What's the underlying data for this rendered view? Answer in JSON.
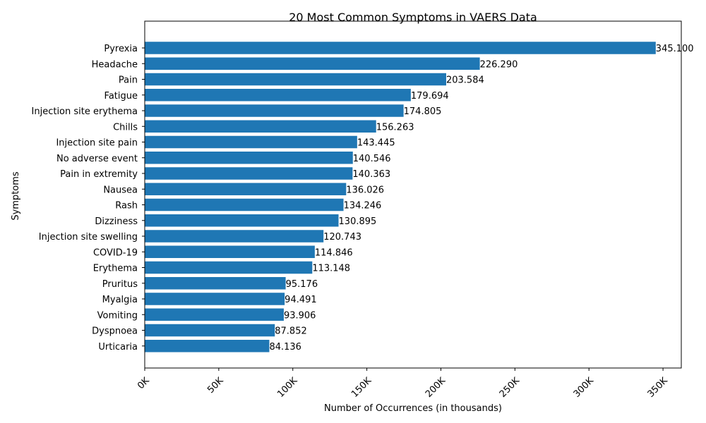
{
  "chart_data": {
    "type": "bar",
    "orientation": "horizontal",
    "title": "20 Most Common Symptoms in VAERS Data",
    "xlabel": "Number of Occurrences (in thousands)",
    "ylabel": "Symptoms",
    "xlim": [
      0,
      362355
    ],
    "x_ticks": [
      0,
      50000,
      100000,
      150000,
      200000,
      250000,
      300000,
      350000
    ],
    "x_tick_labels": [
      "0K",
      "50K",
      "100K",
      "150K",
      "200K",
      "250K",
      "300K",
      "350K"
    ],
    "bar_color": "#1f77b4",
    "grid": false,
    "categories": [
      "Pyrexia",
      "Headache",
      "Pain",
      "Fatigue",
      "Injection site erythema",
      "Chills",
      "Injection site pain",
      "No adverse event",
      "Pain in extremity",
      "Nausea",
      "Rash",
      "Dizziness",
      "Injection site swelling",
      "COVID-19",
      "Erythema",
      "Pruritus",
      "Myalgia",
      "Vomiting",
      "Dyspnoea",
      "Urticaria"
    ],
    "values": [
      345100,
      226290,
      203584,
      179694,
      174805,
      156263,
      143445,
      140546,
      140363,
      136026,
      134246,
      130895,
      120743,
      114846,
      113148,
      95176,
      94491,
      93906,
      87852,
      84136
    ],
    "value_labels": [
      "345.100",
      "226.290",
      "203.584",
      "179.694",
      "174.805",
      "156.263",
      "143.445",
      "140.546",
      "140.363",
      "136.026",
      "134.246",
      "130.895",
      "120.743",
      "114.846",
      "113.148",
      "95.176",
      "94.491",
      "93.906",
      "87.852",
      "84.136"
    ]
  }
}
